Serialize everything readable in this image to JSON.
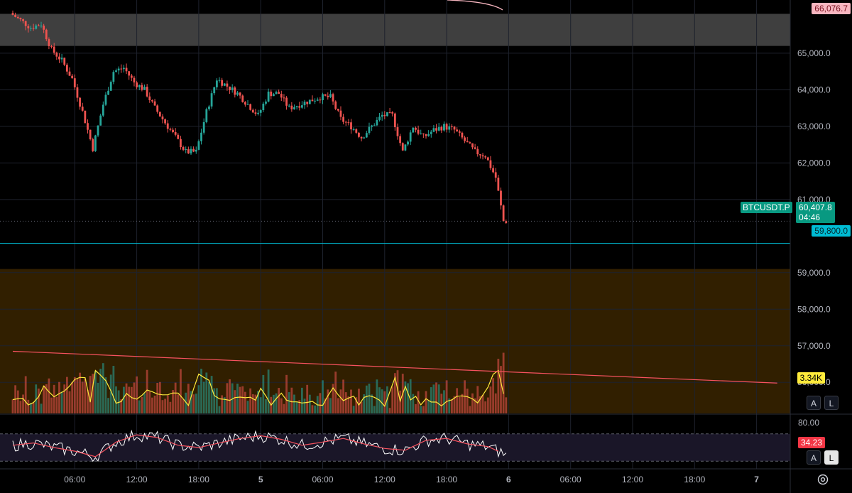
{
  "chart_data": [
    {
      "type": "candlestick",
      "symbol": "BTCUSDT.P",
      "y_axis": {
        "range": [
          55150,
          66300
        ],
        "ticks": [
          65000,
          64000,
          63000,
          62000,
          61000,
          59000,
          58000,
          57000,
          56000
        ],
        "tick_labels": [
          "65,000.0",
          "64,000.0",
          "63,000.0",
          "62,000.0",
          "61,000.0",
          "59,000.0",
          "58,000.0",
          "57,000.0",
          "56,000.0"
        ]
      },
      "x_axis": {
        "tick_labels": [
          "06:00",
          "12:00",
          "18:00",
          "5",
          "06:00",
          "12:00",
          "18:00",
          "6",
          "06:00",
          "12:00",
          "18:00",
          "7"
        ],
        "tick_hours": [
          6,
          12,
          18,
          24,
          30,
          36,
          42,
          48,
          54,
          60,
          66,
          72
        ]
      },
      "path_hours": [
        0,
        1,
        2,
        3,
        4,
        5,
        6,
        7,
        8,
        9,
        10,
        11,
        12,
        13,
        14,
        15,
        16,
        17,
        18,
        19,
        20,
        21,
        22,
        23,
        24,
        25,
        26,
        27,
        28,
        29,
        30,
        31,
        32,
        33,
        34,
        35,
        36,
        37,
        38,
        39,
        40,
        41,
        42,
        43,
        44,
        45,
        46,
        47,
        47.75
      ],
      "path_prices": [
        66100,
        65900,
        65700,
        65800,
        65100,
        64800,
        64300,
        63400,
        62400,
        63600,
        64500,
        64600,
        64200,
        64000,
        63500,
        63100,
        62700,
        62300,
        62300,
        63400,
        64300,
        64100,
        63900,
        63600,
        63300,
        63900,
        63900,
        63500,
        63600,
        63700,
        63800,
        63800,
        63200,
        63000,
        62700,
        63000,
        63300,
        63300,
        62300,
        63000,
        62700,
        62900,
        63000,
        62900,
        62600,
        62300,
        62200,
        61600,
        60407.8
      ],
      "current_price": {
        "value": 60407.8,
        "label": "60,407.8",
        "symbol_label": "BTCUSDT.P",
        "countdown": "04:46"
      },
      "levels": [
        {
          "label": "66,076.7",
          "value": 66076.7,
          "color": "#f7525f"
        },
        {
          "label": "59,800.0",
          "value": 59800.0,
          "color": "#00bcd4"
        }
      ],
      "zones": [
        {
          "from": 65200,
          "to": 66076.7,
          "color": "#4a4a4a"
        },
        {
          "from": 55150,
          "to": 59100,
          "color": "#3a2500"
        }
      ],
      "trendline": {
        "color": "#f7525f",
        "from_hour": 0,
        "from_price": 56850,
        "to_hour": 74,
        "to_price": 55980
      },
      "up_color": "#26a69a",
      "down_color": "#ef5350"
    },
    {
      "type": "bar",
      "name": "Volume",
      "last_value_label": "3.34K",
      "ma_color": "#ffeb3b"
    },
    {
      "type": "line",
      "name": "RSI",
      "range": [
        0,
        100
      ],
      "bands": [
        80,
        20
      ],
      "band_label": "80.00",
      "last_value_label": "34.23",
      "rsi_color": "#ffffff",
      "signal_color": "#f7525f",
      "path_hours": [
        0,
        2,
        4,
        6,
        8,
        10,
        12,
        14,
        16,
        18,
        20,
        22,
        24,
        26,
        28,
        30,
        32,
        34,
        36,
        38,
        40,
        42,
        44,
        46,
        47.75
      ],
      "path_values": [
        55,
        60,
        50,
        42,
        30,
        62,
        78,
        72,
        55,
        50,
        60,
        70,
        76,
        68,
        55,
        62,
        70,
        58,
        48,
        44,
        66,
        70,
        58,
        52,
        34.23
      ]
    }
  ],
  "toolbar": {
    "auto_label": "A",
    "log_label": "L"
  }
}
